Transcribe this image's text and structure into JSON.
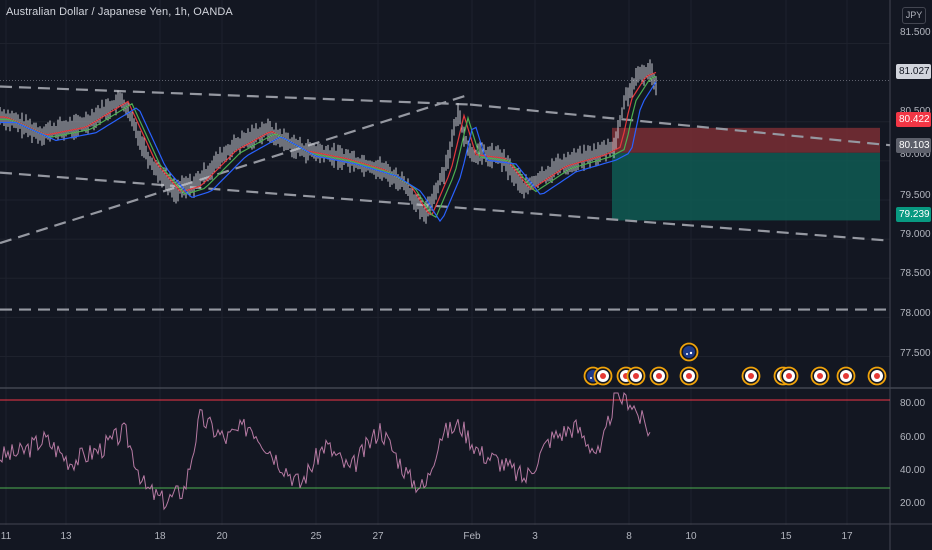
{
  "header": {
    "symbol_title": "Australian Dollar / Japanese Yen, 1h, OANDA",
    "currency_button": "JPY"
  },
  "price_axis": {
    "ticks": [
      "81.500",
      "80.500",
      "80.000",
      "79.500",
      "79.000",
      "78.500",
      "78.000",
      "77.500"
    ]
  },
  "rsi_axis": {
    "ticks": [
      "80.00",
      "60.00",
      "40.00",
      "20.00"
    ]
  },
  "time_axis": {
    "ticks": [
      "11",
      "13",
      "18",
      "20",
      "25",
      "27",
      "Feb",
      "3",
      "8",
      "10",
      "15",
      "17"
    ]
  },
  "price_labels": {
    "last_price": "81.027",
    "stop_loss": "80.422",
    "entry": "80.103",
    "take_profit": "79.239"
  },
  "colors": {
    "background": "#131722",
    "stop_zone": "#7a2e34",
    "target_zone": "#0f5a52",
    "stop_label": "#f23645",
    "target_label": "#089981",
    "rsi_line": "#b67aa3",
    "rsi_upper": "#f23645",
    "rsi_lower": "#4caf50"
  },
  "chart_data": {
    "type": "line",
    "symbol": "AUDJPY",
    "timeframe": "1h",
    "price_range": [
      77.2,
      81.8
    ],
    "price_path": [
      [
        0,
        80.58
      ],
      [
        40,
        80.35
      ],
      [
        80,
        80.45
      ],
      [
        122,
        80.78
      ],
      [
        150,
        80.0
      ],
      [
        175,
        79.62
      ],
      [
        195,
        79.7
      ],
      [
        230,
        80.15
      ],
      [
        265,
        80.4
      ],
      [
        300,
        80.15
      ],
      [
        340,
        80.05
      ],
      [
        380,
        79.9
      ],
      [
        405,
        79.7
      ],
      [
        425,
        79.3
      ],
      [
        445,
        79.9
      ],
      [
        458,
        80.6
      ],
      [
        470,
        80.1
      ],
      [
        500,
        80.05
      ],
      [
        525,
        79.65
      ],
      [
        560,
        79.95
      ],
      [
        600,
        80.1
      ],
      [
        615,
        80.2
      ],
      [
        625,
        80.8
      ],
      [
        640,
        81.1
      ],
      [
        650,
        81.15
      ],
      [
        656,
        81.0
      ]
    ],
    "rsi_range": [
      10,
      90
    ],
    "rsi_levels": [
      80,
      30
    ],
    "rsi_path": [
      [
        0,
        48
      ],
      [
        20,
        50
      ],
      [
        45,
        58
      ],
      [
        70,
        45
      ],
      [
        100,
        52
      ],
      [
        125,
        62
      ],
      [
        145,
        30
      ],
      [
        165,
        22
      ],
      [
        185,
        30
      ],
      [
        200,
        70
      ],
      [
        225,
        58
      ],
      [
        250,
        66
      ],
      [
        275,
        48
      ],
      [
        300,
        32
      ],
      [
        325,
        55
      ],
      [
        350,
        40
      ],
      [
        380,
        64
      ],
      [
        410,
        35
      ],
      [
        425,
        30
      ],
      [
        440,
        60
      ],
      [
        460,
        66
      ],
      [
        480,
        50
      ],
      [
        500,
        45
      ],
      [
        525,
        35
      ],
      [
        550,
        58
      ],
      [
        575,
        65
      ],
      [
        600,
        48
      ],
      [
        615,
        82
      ],
      [
        630,
        80
      ],
      [
        640,
        70
      ],
      [
        650,
        62
      ]
    ],
    "lines": [
      {
        "style": "dashed",
        "from": [
          0,
          80.95
        ],
        "to": [
          470,
          80.72
        ]
      },
      {
        "style": "dashed",
        "from": [
          470,
          80.72
        ],
        "to": [
          890,
          80.2
        ]
      },
      {
        "style": "dashed",
        "from": [
          0,
          79.85
        ],
        "to": [
          890,
          78.98
        ]
      },
      {
        "style": "dashed",
        "from": [
          0,
          78.95
        ],
        "to": [
          470,
          80.85
        ]
      },
      {
        "style": "dashed",
        "from": [
          0,
          78.1
        ],
        "to": [
          890,
          78.1
        ]
      }
    ],
    "position": {
      "x_start": 612,
      "x_end": 880,
      "stop": 80.422,
      "entry": 80.103,
      "target": 79.239
    },
    "events": [
      {
        "x": 593,
        "type": "au-flag"
      },
      {
        "x": 603,
        "type": "dot"
      },
      {
        "x": 626,
        "type": "dot"
      },
      {
        "x": 636,
        "type": "dot"
      },
      {
        "x": 659,
        "type": "dot"
      },
      {
        "x": 689,
        "type": "dot"
      },
      {
        "x": 689,
        "type": "au-flag",
        "row": 2
      },
      {
        "x": 751,
        "type": "dot"
      },
      {
        "x": 783,
        "type": "dot"
      },
      {
        "x": 789,
        "type": "dot"
      },
      {
        "x": 820,
        "type": "dot"
      },
      {
        "x": 846,
        "type": "dot"
      },
      {
        "x": 877,
        "type": "dot"
      }
    ]
  }
}
